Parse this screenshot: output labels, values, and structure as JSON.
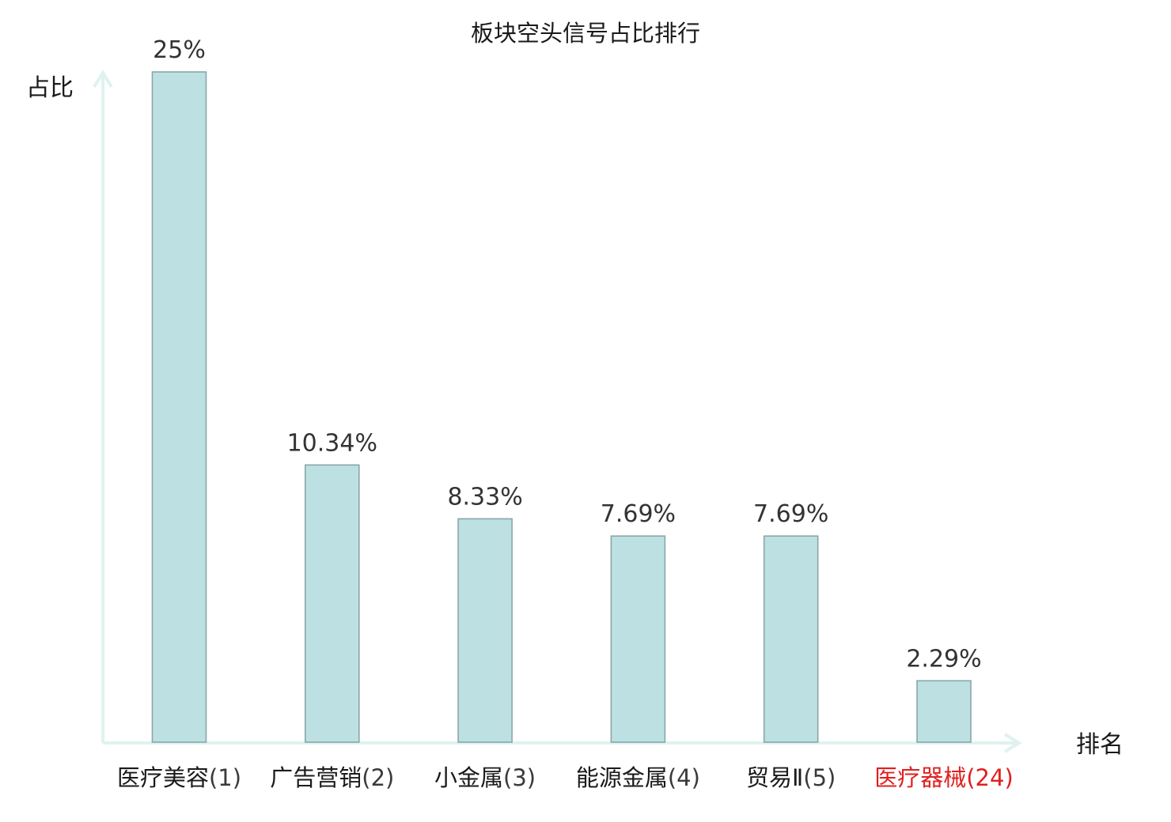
{
  "chart_data": {
    "type": "bar",
    "title": "板块空头信号占比排行",
    "ylabel": "占比",
    "xlabel": "排名",
    "ylim": [
      0,
      25
    ],
    "grid": false,
    "legend": "none",
    "categories": [
      {
        "name": "医疗美容",
        "rank": "(1)",
        "highlight": false
      },
      {
        "name": "广告营销",
        "rank": "(2)",
        "highlight": false
      },
      {
        "name": "小金属",
        "rank": "(3)",
        "highlight": false
      },
      {
        "name": "能源金属",
        "rank": "(4)",
        "highlight": false
      },
      {
        "name": "贸易Ⅱ",
        "rank": "(5)",
        "highlight": false
      },
      {
        "name": "医疗器械",
        "rank": "(24)",
        "highlight": true
      }
    ],
    "values": [
      25,
      10.34,
      8.33,
      7.69,
      7.69,
      2.29
    ],
    "value_labels": [
      "25%",
      "10.34%",
      "8.33%",
      "7.69%",
      "7.69%",
      "2.29%"
    ]
  },
  "colors": {
    "bar_fill": "#bde1e3",
    "bar_stroke": "#8aa6a8",
    "axis": "#dff2ef",
    "label_normal_name": "#1a1a1a",
    "label_normal_rank": "#3a3a3a",
    "label_highlight": "#e02020",
    "value_text": "#333333"
  }
}
